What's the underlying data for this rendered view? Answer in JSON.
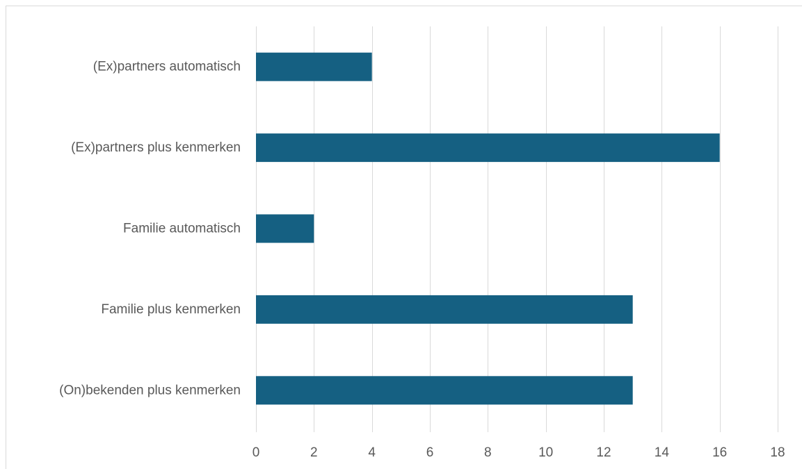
{
  "chart_data": {
    "type": "bar",
    "orientation": "horizontal",
    "categories": [
      "(Ex)partners automatisch",
      "(Ex)partners plus kenmerken",
      "Familie automatisch",
      "Familie plus kenmerken",
      "(On)bekenden plus kenmerken"
    ],
    "values": [
      4,
      16,
      2,
      13,
      13
    ],
    "title": "",
    "xlabel": "",
    "ylabel": "",
    "xlim": [
      0,
      18
    ],
    "x_ticks": [
      "0",
      "2",
      "4",
      "6",
      "8",
      "10",
      "12",
      "14",
      "16",
      "18"
    ],
    "grid": "vertical",
    "legend": "none",
    "bar_color": "#156082",
    "grid_color": "#d9d9d9",
    "label_color": "#595959"
  }
}
